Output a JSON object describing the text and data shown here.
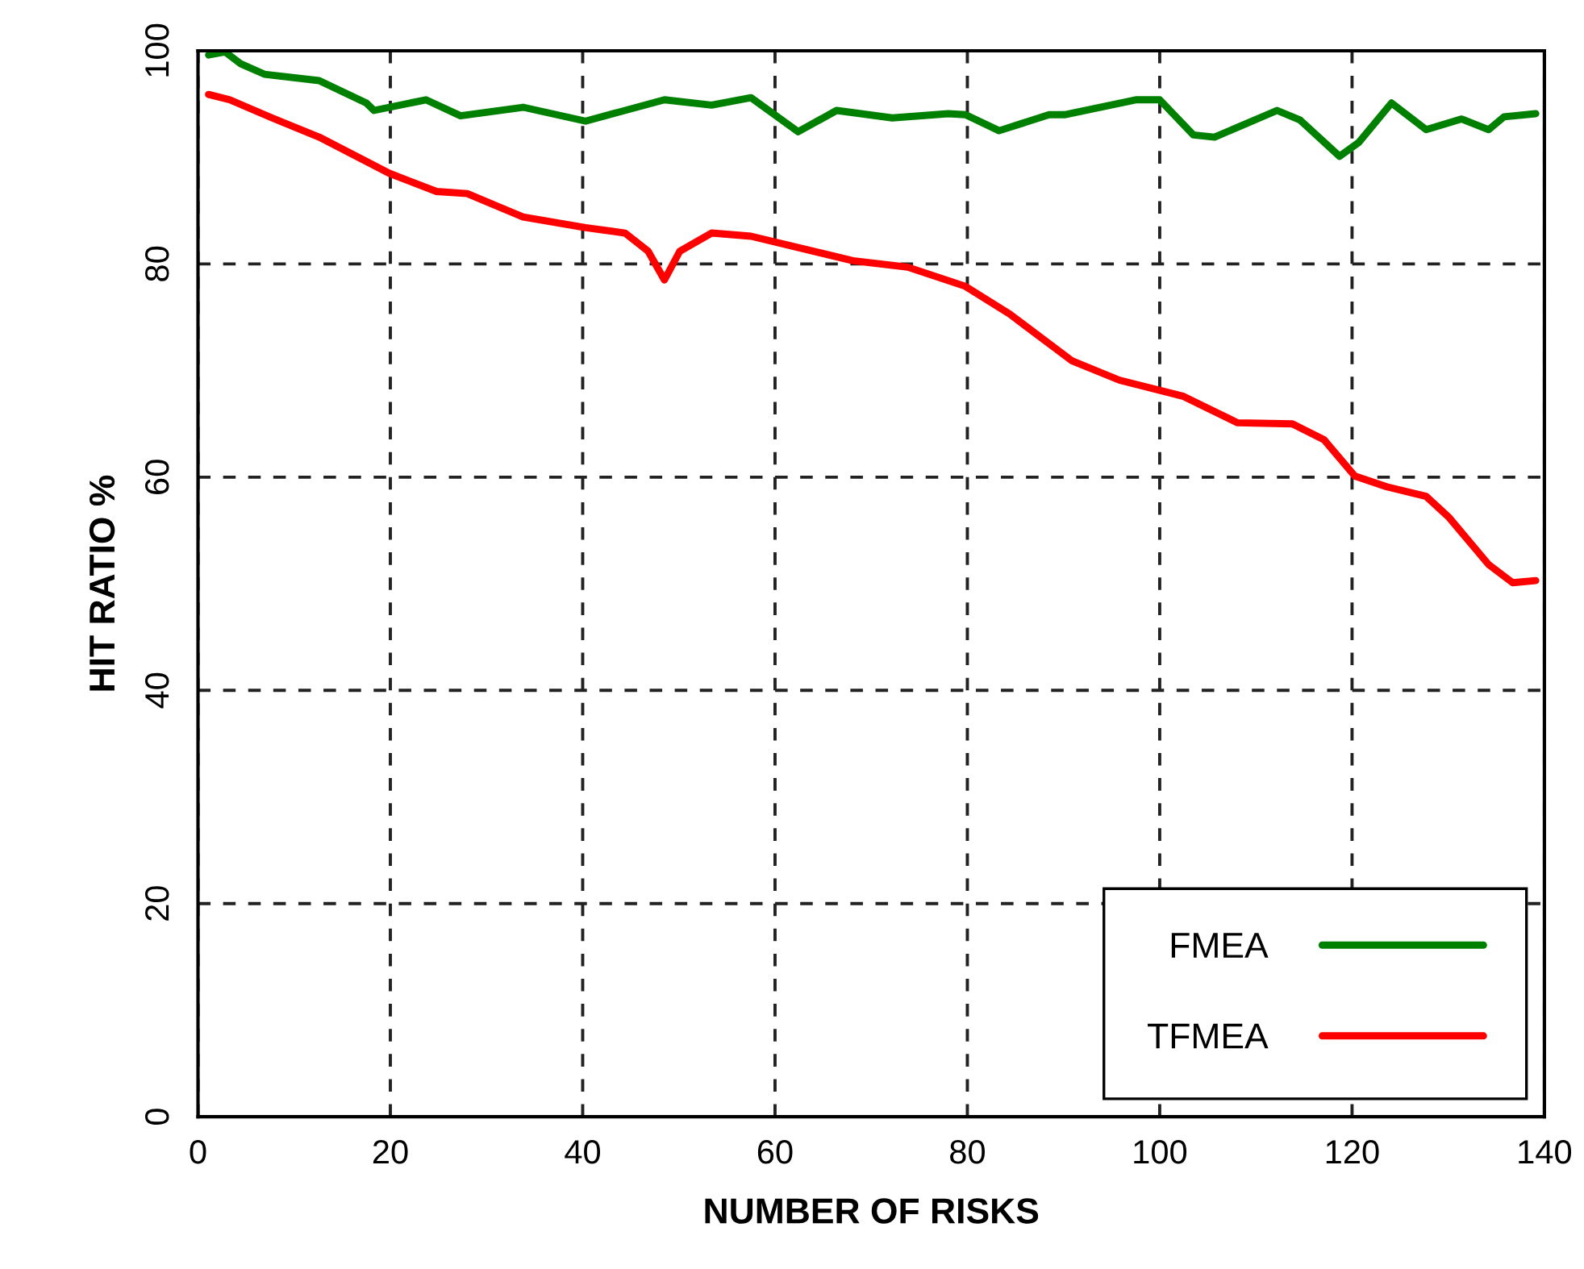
{
  "chart_data": {
    "type": "line",
    "xlabel": "NUMBER OF RISKS",
    "ylabel": "HIT RATIO %",
    "xlim": [
      0,
      140
    ],
    "ylim": [
      0,
      100
    ],
    "xticks": [
      0,
      20,
      40,
      60,
      80,
      100,
      120,
      140
    ],
    "yticks": [
      0,
      20,
      40,
      60,
      80,
      100
    ],
    "grid": true,
    "legend": "bottom right",
    "line_style": "solid",
    "series": [
      {
        "name": "FMEA",
        "color": "#008000",
        "x": [
          1.1,
          2.8,
          4.4,
          6.9,
          12.6,
          17.5,
          18.3,
          23.7,
          27.3,
          33.8,
          40.3,
          48.5,
          53.4,
          57.5,
          62.4,
          66.4,
          72.2,
          78,
          79.8,
          83.3,
          88.5,
          90.1,
          97.5,
          100,
          103.5,
          105.7,
          112.2,
          114.6,
          118.7,
          120.7,
          124.1,
          127.7,
          131.4,
          134.2,
          135.8,
          139.1
        ],
        "values": [
          99.6,
          99.9,
          98.8,
          97.8,
          97.2,
          95.1,
          94.4,
          95.4,
          93.9,
          94.7,
          93.4,
          95.4,
          94.9,
          95.6,
          92.4,
          94.4,
          93.7,
          94.1,
          94,
          92.5,
          94,
          94,
          95.4,
          95.4,
          92.1,
          91.9,
          94.4,
          93.5,
          90.1,
          91.4,
          95.1,
          92.6,
          93.6,
          92.6,
          93.8,
          94.1
        ]
      },
      {
        "name": "TFMEA",
        "color": "#ff0000",
        "x": [
          1.1,
          3.3,
          7.7,
          12.6,
          19.9,
          24.8,
          28,
          33.8,
          40.3,
          44.4,
          46.8,
          48.5,
          50.1,
          53.4,
          57.5,
          68.1,
          73.8,
          79.8,
          84.4,
          90.9,
          95.8,
          102.4,
          108.1,
          113.8,
          117.1,
          120.3,
          123.6,
          127.7,
          130.1,
          134.2,
          136.7,
          139.1
        ],
        "values": [
          95.9,
          95.4,
          93.7,
          91.9,
          88.5,
          86.8,
          86.6,
          84.4,
          83.4,
          82.9,
          81.2,
          78.5,
          81.2,
          82.9,
          82.6,
          80.3,
          79.7,
          77.9,
          75.3,
          70.9,
          69.1,
          67.6,
          65.1,
          65,
          63.5,
          60.1,
          59.1,
          58.2,
          56.2,
          51.8,
          50.1,
          50.3
        ]
      }
    ]
  }
}
